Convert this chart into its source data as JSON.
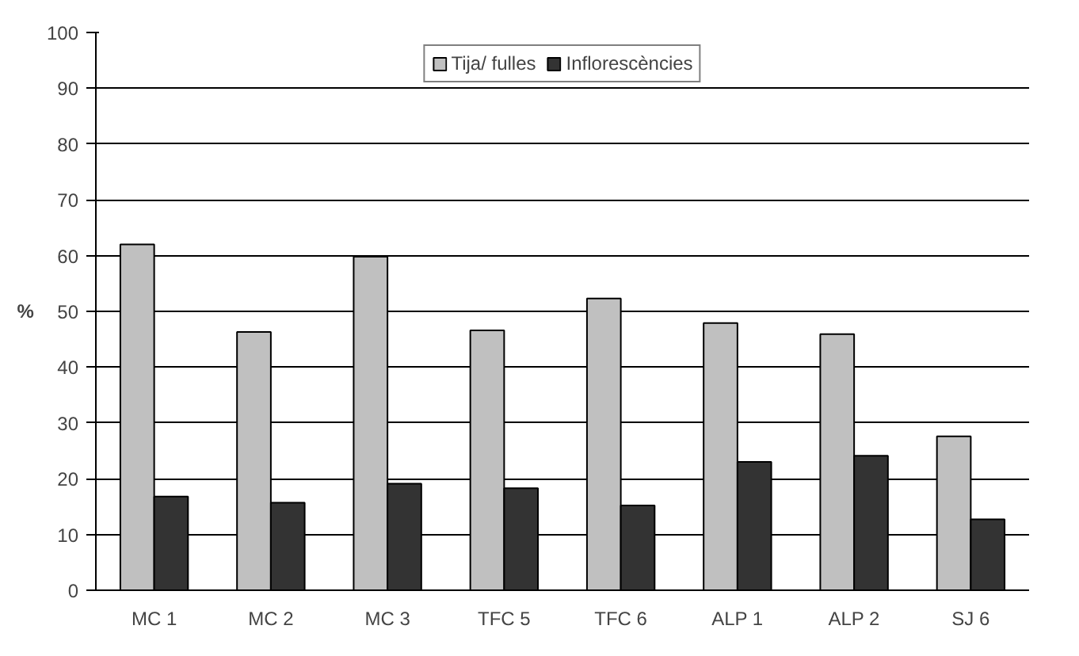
{
  "chart_data": {
    "type": "bar",
    "ylabel": "%",
    "categories": [
      "MC 1",
      "MC 2",
      "MC 3",
      "TFC 5",
      "TFC 6",
      "ALP 1",
      "ALP 2",
      "SJ 6"
    ],
    "series": [
      {
        "name": "Tija/ fulles",
        "color": "#c0c0c0",
        "values": [
          62.0,
          46.3,
          59.8,
          46.6,
          52.3,
          47.9,
          45.9,
          27.6
        ]
      },
      {
        "name": "Inflorescències",
        "color": "#333333",
        "values": [
          16.8,
          15.7,
          19.1,
          18.3,
          15.2,
          23.0,
          24.1,
          12.7
        ]
      }
    ],
    "ylim": [
      0,
      100
    ],
    "yticks": [
      0,
      10,
      20,
      30,
      40,
      50,
      60,
      70,
      80,
      90,
      100
    ],
    "grid": "y",
    "legend": "top"
  }
}
